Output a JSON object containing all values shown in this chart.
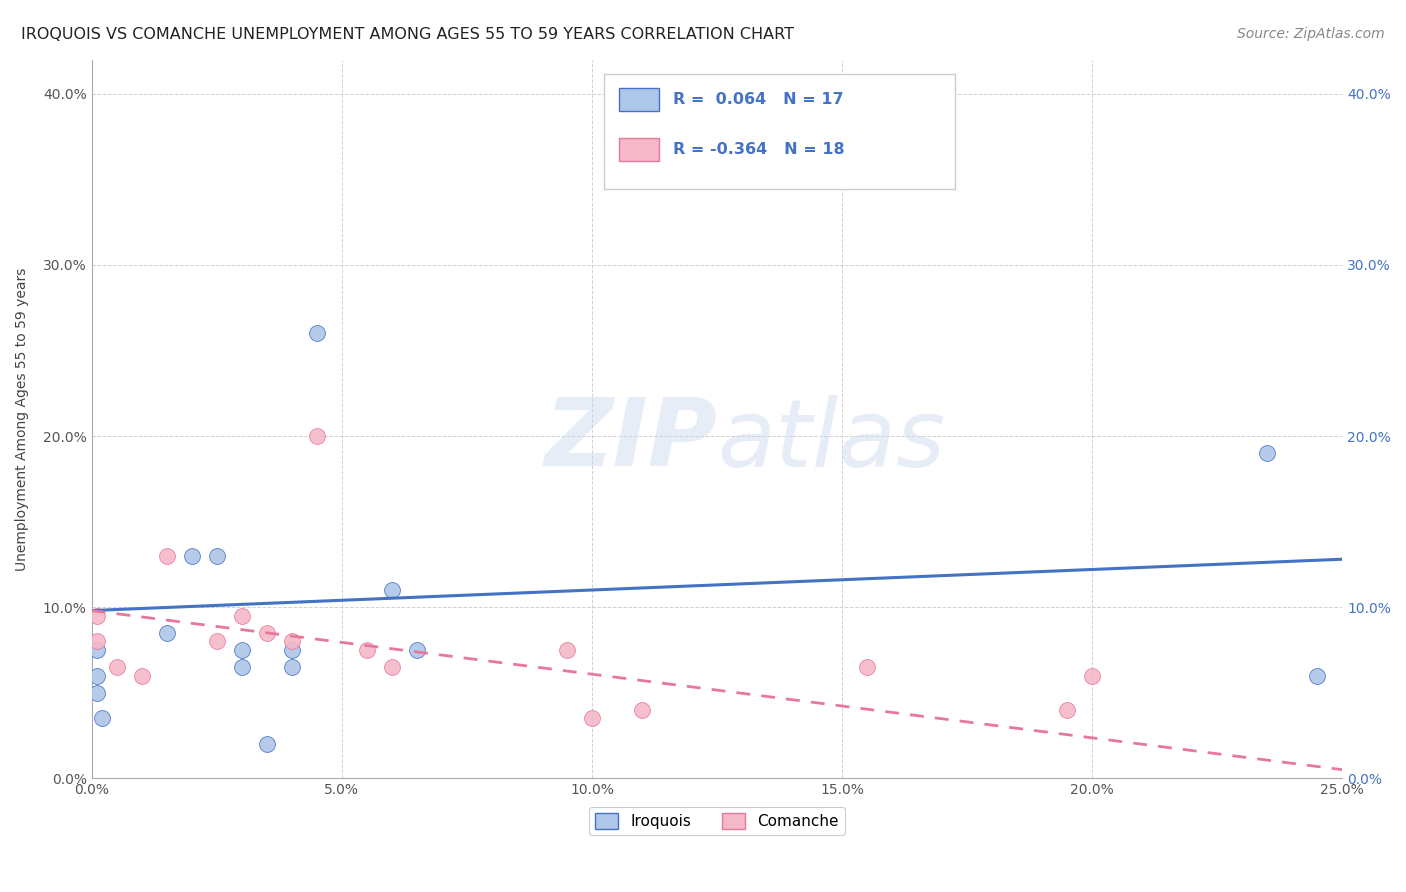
{
  "title": "IROQUOIS VS COMANCHE UNEMPLOYMENT AMONG AGES 55 TO 59 YEARS CORRELATION CHART",
  "source": "Source: ZipAtlas.com",
  "xlabel": "",
  "ylabel": "Unemployment Among Ages 55 to 59 years",
  "xlim": [
    0.0,
    0.25
  ],
  "ylim": [
    0.0,
    0.42
  ],
  "xticks": [
    0.0,
    0.05,
    0.1,
    0.15,
    0.2,
    0.25
  ],
  "yticks": [
    0.0,
    0.1,
    0.2,
    0.3,
    0.4
  ],
  "background_color": "#ffffff",
  "grid_color": "#cccccc",
  "watermark_zip": "ZIP",
  "watermark_atlas": "atlas",
  "iroquois_R": 0.064,
  "iroquois_N": 17,
  "comanche_R": -0.364,
  "comanche_N": 18,
  "iroquois_color": "#aec6e8",
  "comanche_color": "#f4b8c8",
  "iroquois_line_color": "#4472c4",
  "comanche_line_color": "#e8789a",
  "iroquois_x": [
    0.001,
    0.001,
    0.001,
    0.002,
    0.015,
    0.02,
    0.025,
    0.03,
    0.03,
    0.035,
    0.04,
    0.04,
    0.045,
    0.06,
    0.065,
    0.235,
    0.245
  ],
  "iroquois_y": [
    0.075,
    0.06,
    0.05,
    0.035,
    0.085,
    0.13,
    0.13,
    0.075,
    0.065,
    0.02,
    0.075,
    0.065,
    0.26,
    0.11,
    0.075,
    0.19,
    0.06
  ],
  "comanche_x": [
    0.001,
    0.001,
    0.005,
    0.01,
    0.015,
    0.025,
    0.03,
    0.035,
    0.04,
    0.045,
    0.055,
    0.06,
    0.095,
    0.1,
    0.11,
    0.155,
    0.195,
    0.2
  ],
  "comanche_y": [
    0.095,
    0.08,
    0.065,
    0.06,
    0.13,
    0.08,
    0.095,
    0.085,
    0.08,
    0.2,
    0.075,
    0.065,
    0.075,
    0.035,
    0.04,
    0.065,
    0.04,
    0.06
  ],
  "iroquois_trend_x": [
    0.0,
    0.25
  ],
  "iroquois_trend_y": [
    0.098,
    0.128
  ],
  "comanche_trend_x": [
    0.0,
    0.25
  ],
  "comanche_trend_y": [
    0.098,
    0.005
  ],
  "marker_size": 130,
  "title_fontsize": 11.5,
  "axis_label_fontsize": 10,
  "tick_fontsize": 10,
  "legend_fontsize": 11,
  "source_fontsize": 10
}
